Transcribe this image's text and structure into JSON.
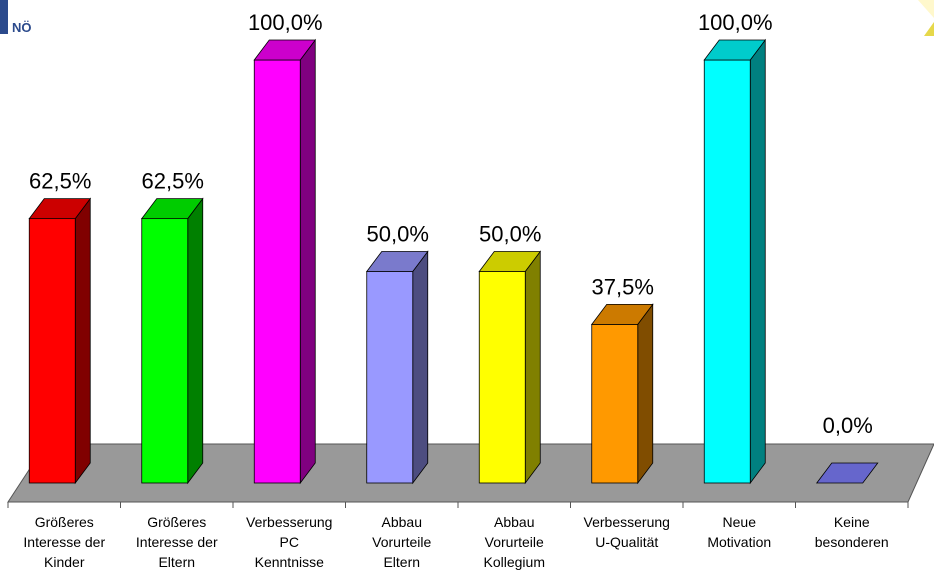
{
  "logo": {
    "text": "NÖ"
  },
  "chart_data": {
    "type": "bar",
    "categories": [
      [
        "Größeres",
        "Interesse der",
        "Kinder"
      ],
      [
        "Größeres",
        "Interesse der",
        "Eltern"
      ],
      [
        "Verbesserung",
        "PC",
        "Kenntnisse"
      ],
      [
        "Abbau",
        "Vorurteile",
        "Eltern"
      ],
      [
        "Abbau",
        "Vorurteile",
        "Kollegium"
      ],
      [
        "Verbesserung",
        "U-Qualität"
      ],
      [
        "Neue",
        "Motivation"
      ],
      [
        "Keine",
        "besonderen"
      ]
    ],
    "values": [
      62.5,
      62.5,
      100.0,
      50.0,
      50.0,
      37.5,
      100.0,
      0.0
    ],
    "value_labels": [
      "62,5%",
      "62,5%",
      "100,0%",
      "50,0%",
      "50,0%",
      "37,5%",
      "100,0%",
      "0,0%"
    ],
    "colors": [
      {
        "front": "#ff0000",
        "top": "#cc0000",
        "side": "#800000"
      },
      {
        "front": "#00ff00",
        "top": "#00cc00",
        "side": "#008000"
      },
      {
        "front": "#ff00ff",
        "top": "#cc00cc",
        "side": "#800080"
      },
      {
        "front": "#9999ff",
        "top": "#7a7acc",
        "side": "#4d4d80"
      },
      {
        "front": "#ffff00",
        "top": "#cccc00",
        "side": "#808000"
      },
      {
        "front": "#ff9900",
        "top": "#cc7a00",
        "side": "#804d00"
      },
      {
        "front": "#00ffff",
        "top": "#00cccc",
        "side": "#008080"
      },
      {
        "front": "#6666cc",
        "top": "#6666cc",
        "side": "#333380"
      }
    ],
    "floor_color": "#999999",
    "ylim": [
      0,
      100
    ],
    "grid": false,
    "legend": "none"
  }
}
